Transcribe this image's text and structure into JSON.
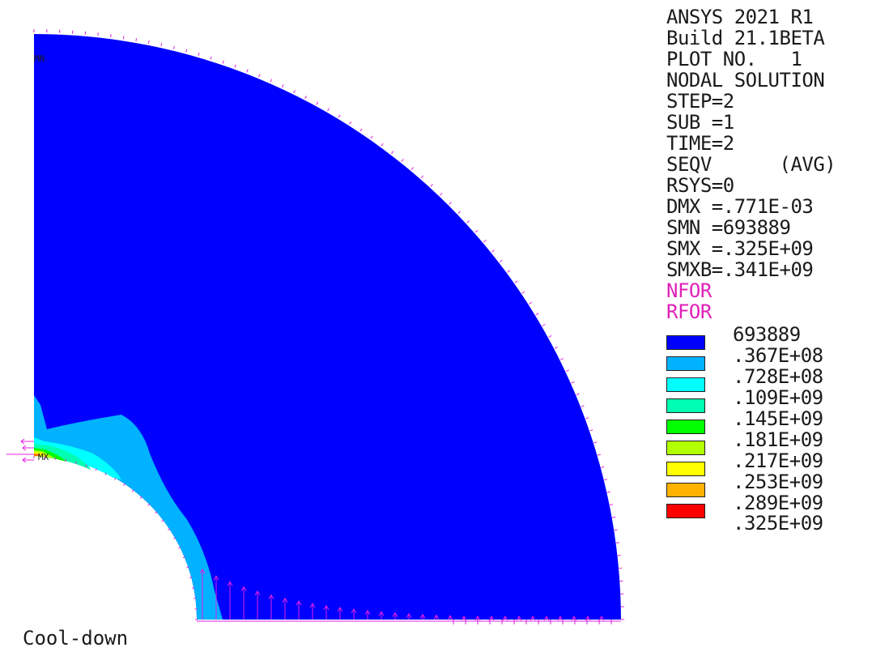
{
  "info": {
    "lines": [
      "ANSYS 2021 R1",
      "Build 21.1BETA",
      "PLOT NO.   1",
      "NODAL SOLUTION",
      "STEP=2",
      "SUB =1",
      "TIME=2",
      "SEQV      (AVG)",
      "RSYS=0",
      "DMX =.771E-03",
      "SMN =693889",
      "SMX =.325E+09",
      "SMXB=.341E+09"
    ],
    "force_labels": [
      "NFOR",
      "RFOR"
    ]
  },
  "legend": {
    "values": [
      "693889",
      ".367E+08",
      ".728E+08",
      ".109E+09",
      ".145E+09",
      ".181E+09",
      ".217E+09",
      ".253E+09",
      ".289E+09",
      ".325E+09"
    ],
    "colors": [
      "#0000ff",
      "#00b2ff",
      "#00ffff",
      "#00ffb2",
      "#00ff00",
      "#b2ff00",
      "#ffff00",
      "#ffb200",
      "#ff0000"
    ]
  },
  "markers": {
    "min": "MN",
    "max": "MX"
  },
  "caption": "Cool-down",
  "colors": {
    "force_arrow": "#e020e0",
    "text": "#1a1a1a"
  }
}
